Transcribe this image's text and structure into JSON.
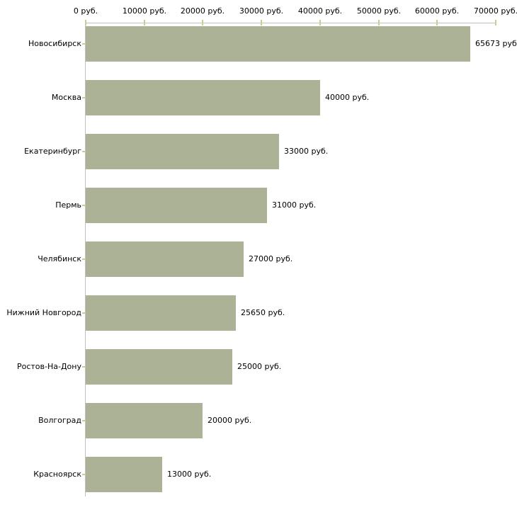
{
  "chart_data": {
    "type": "bar",
    "orientation": "horizontal",
    "title": "",
    "xlabel": "",
    "ylabel": "",
    "grid": false,
    "legend": "none",
    "categories": [
      "Новосибирск",
      "Москва",
      "Екатеринбург",
      "Пермь",
      "Челябинск",
      "Нижний Новгород",
      "Ростов-На-Дону",
      "Волгоград",
      "Красноярск"
    ],
    "values": [
      65673,
      40000,
      33000,
      31000,
      27000,
      25650,
      25000,
      20000,
      13000
    ],
    "value_labels": [
      "65673 руб.",
      "40000 руб.",
      "33000 руб.",
      "31000 руб.",
      "27000 руб.",
      "25650 руб.",
      "25000 руб.",
      "20000 руб.",
      "13000 руб."
    ],
    "x_axis": {
      "position": "top",
      "range": [
        0,
        70000
      ],
      "ticks": [
        0,
        10000,
        20000,
        30000,
        40000,
        50000,
        60000,
        70000
      ],
      "tick_labels": [
        "0 руб.",
        "10000 руб.",
        "20000 руб.",
        "30000 руб.",
        "40000 руб.",
        "50000 руб.",
        "60000 руб.",
        "70000 руб."
      ]
    },
    "colors": {
      "bar": "#acb296",
      "axis_line": "#c0c0c0",
      "tick": "#cccc99",
      "text": "#000000",
      "background": "#ffffff"
    }
  }
}
